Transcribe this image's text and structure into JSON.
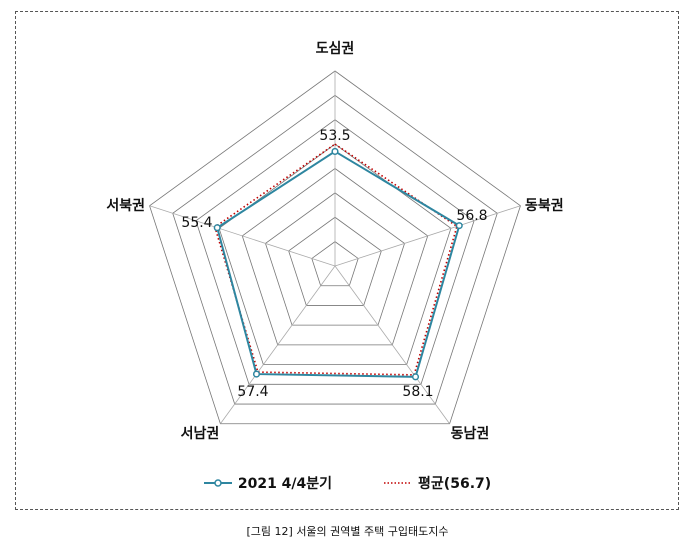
{
  "chart_data": {
    "type": "radar",
    "title": "",
    "categories": [
      "도심권",
      "동북권",
      "동남권",
      "서남권",
      "서북권"
    ],
    "rlim": [
      30,
      70
    ],
    "ring_step": 5,
    "grid": true,
    "legend_position": "bottom",
    "series": [
      {
        "name": "2021 4/4분기",
        "values": [
          53.5,
          56.8,
          58.1,
          57.4,
          55.4
        ],
        "color": "#2e86a0",
        "style": "solid-marker",
        "labels": [
          "53.5",
          "56.8",
          "58.1",
          "57.4",
          "55.4"
        ]
      },
      {
        "name": "평균(56.7)",
        "values": [
          55.0,
          56.3,
          57.6,
          56.9,
          55.9
        ],
        "color": "#c00000",
        "style": "dotted"
      }
    ]
  },
  "caption": "[그림 12] 서울의 권역별 주택 구입태도지수"
}
